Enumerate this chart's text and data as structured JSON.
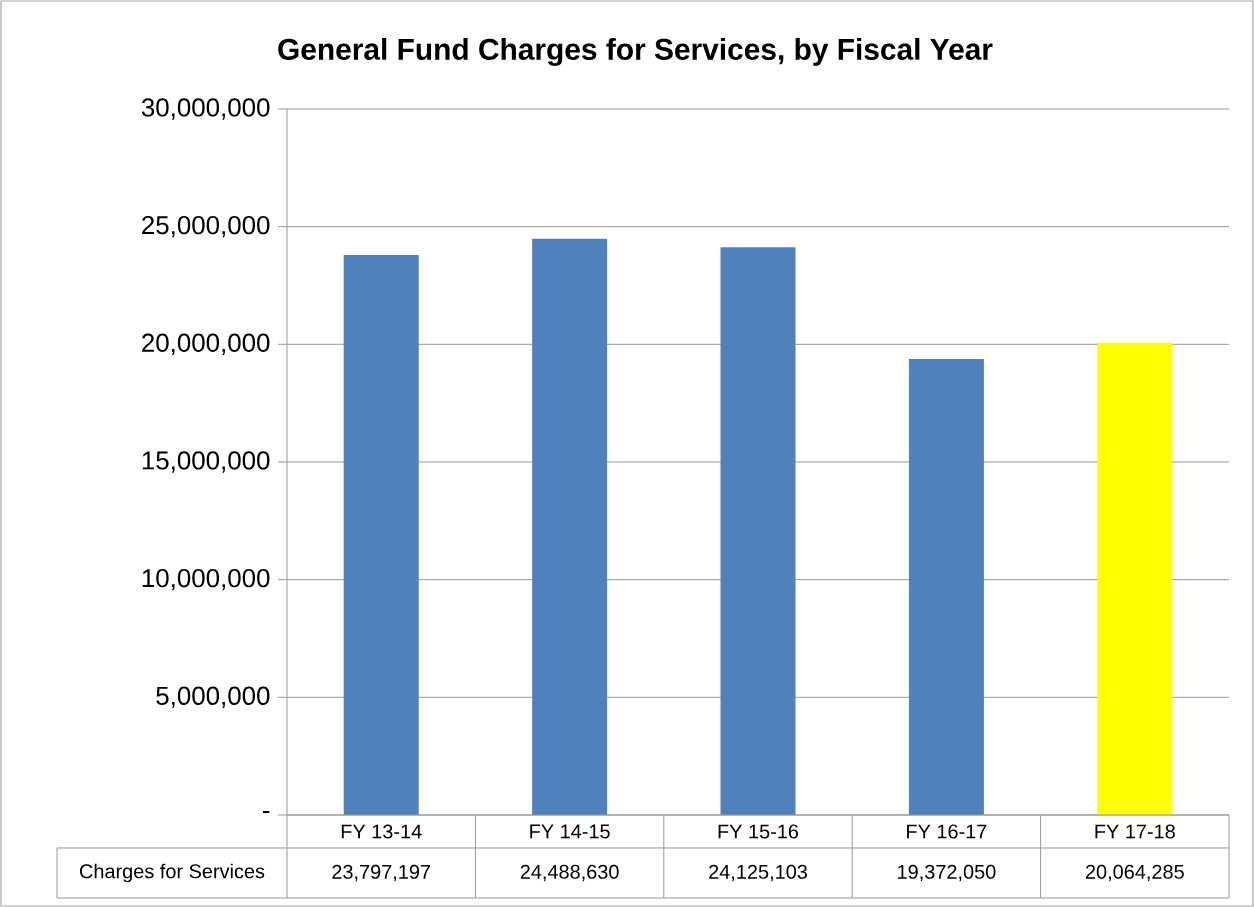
{
  "chart_data": {
    "type": "bar",
    "title": "General Fund Charges for Services, by Fiscal Year",
    "categories": [
      "FY 13-14",
      "FY 14-15",
      "FY 15-16",
      "FY 16-17",
      "FY 17-18"
    ],
    "series": [
      {
        "name": "Charges for Services",
        "values": [
          23797197,
          24488630,
          24125103,
          19372050,
          20064285
        ],
        "colors": [
          "#4f81bd",
          "#4f81bd",
          "#4f81bd",
          "#4f81bd",
          "#ffff00"
        ],
        "value_labels": [
          "23,797,197",
          "24,488,630",
          "24,125,103",
          "19,372,050",
          "20,064,285"
        ]
      }
    ],
    "ylim": [
      0,
      30000000
    ],
    "yticks": [
      {
        "value": 0,
        "label": "-"
      },
      {
        "value": 5000000,
        "label": "5,000,000"
      },
      {
        "value": 10000000,
        "label": "10,000,000"
      },
      {
        "value": 15000000,
        "label": "15,000,000"
      },
      {
        "value": 20000000,
        "label": "20,000,000"
      },
      {
        "value": 25000000,
        "label": "25,000,000"
      },
      {
        "value": 30000000,
        "label": "30,000,000"
      }
    ],
    "grid": "y"
  }
}
